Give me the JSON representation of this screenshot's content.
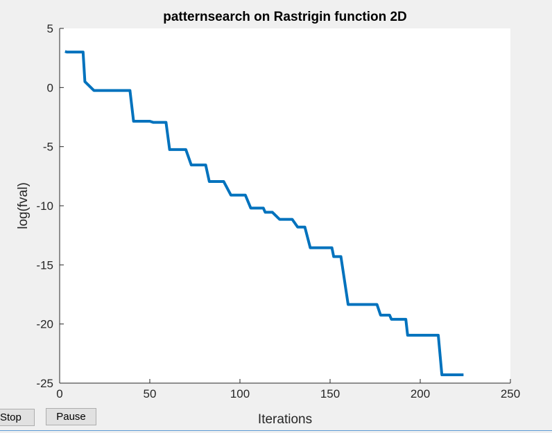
{
  "buttons": {
    "stop_label": "Stop",
    "pause_label": "Pause"
  },
  "colors": {
    "figure_background": "#f0f0f0",
    "plot_background": "#ffffff",
    "series_line": "#0072bd",
    "axis": "#262626"
  },
  "chart_data": {
    "type": "line",
    "title": "patternsearch on Rastrigin function 2D",
    "xlabel": "Iterations",
    "ylabel": "log(fval)",
    "xlim": [
      0,
      250
    ],
    "ylim": [
      -25,
      5
    ],
    "xticks": [
      0,
      50,
      100,
      150,
      200,
      250
    ],
    "yticks": [
      -25,
      -20,
      -15,
      -10,
      -5,
      0,
      5
    ],
    "xtick_labels": [
      "0",
      "50",
      "100",
      "150",
      "200",
      "250"
    ],
    "ytick_labels": [
      "-25",
      "-20",
      "-15",
      "-10",
      "-5",
      "0",
      "5"
    ],
    "grid": false,
    "series": [
      {
        "x": [
          3,
          4,
          13,
          14,
          19,
          39,
          41,
          50,
          52,
          59,
          61,
          70,
          73,
          81,
          83,
          91,
          95,
          103,
          106,
          113,
          114,
          118,
          122,
          129,
          132,
          136,
          139,
          151,
          152,
          156,
          160,
          176,
          178,
          183,
          184,
          192,
          193,
          210,
          212,
          224
        ],
        "y": [
          3.05,
          3.0,
          3.0,
          0.5,
          -0.25,
          -0.25,
          -2.85,
          -2.85,
          -2.95,
          -2.95,
          -5.25,
          -5.25,
          -6.55,
          -6.55,
          -7.95,
          -7.95,
          -9.1,
          -9.1,
          -10.2,
          -10.2,
          -10.55,
          -10.55,
          -11.15,
          -11.15,
          -11.8,
          -11.8,
          -13.55,
          -13.55,
          -14.3,
          -14.3,
          -18.35,
          -18.35,
          -19.25,
          -19.25,
          -19.6,
          -19.6,
          -20.95,
          -20.95,
          -24.3,
          -24.3
        ]
      }
    ]
  }
}
